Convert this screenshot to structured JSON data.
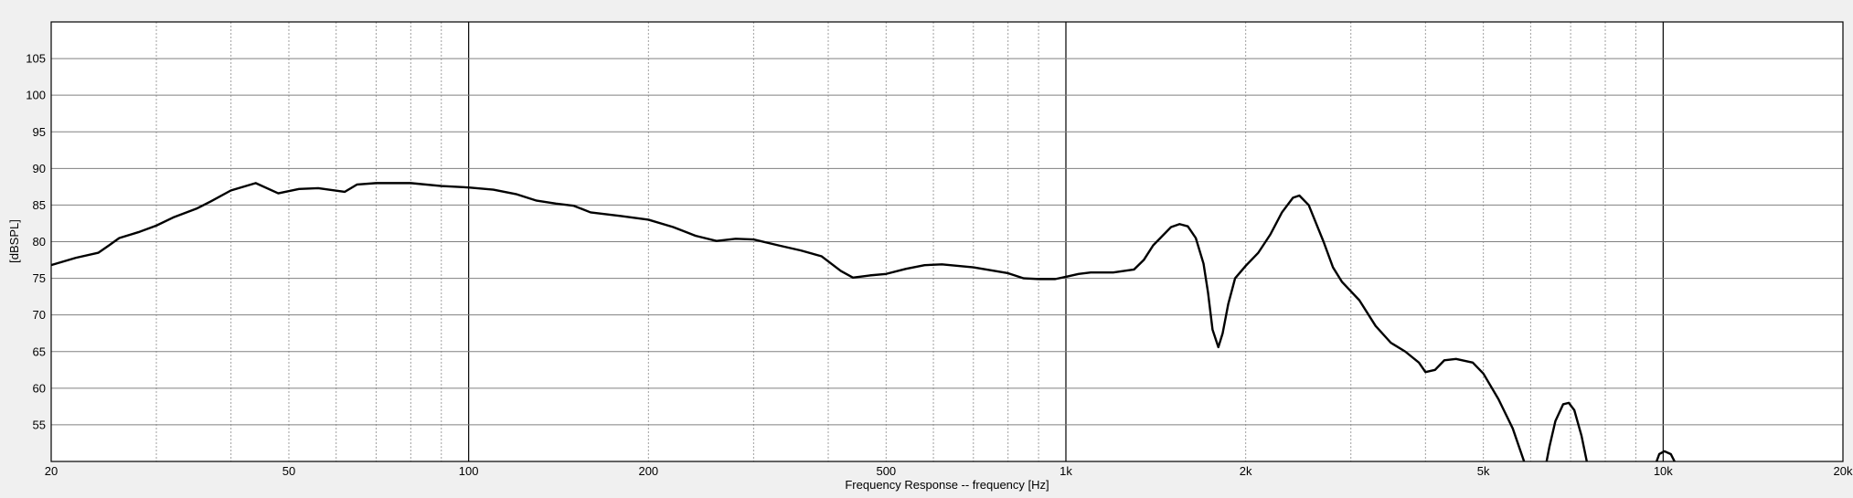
{
  "chart_data": {
    "type": "line",
    "title": "",
    "xlabel": "Frequency Response -- frequency [Hz]",
    "ylabel": "[dBSPL]",
    "x_scale": "log",
    "xlim": [
      20,
      20000
    ],
    "ylim": [
      50,
      110
    ],
    "grid": true,
    "legend": "none",
    "x_ticks": [
      {
        "value": 20,
        "label": "20"
      },
      {
        "value": 50,
        "label": "50"
      },
      {
        "value": 100,
        "label": "100"
      },
      {
        "value": 200,
        "label": "200"
      },
      {
        "value": 500,
        "label": "500"
      },
      {
        "value": 1000,
        "label": "1k"
      },
      {
        "value": 2000,
        "label": "2k"
      },
      {
        "value": 5000,
        "label": "5k"
      },
      {
        "value": 10000,
        "label": "10k"
      },
      {
        "value": 20000,
        "label": "20k"
      }
    ],
    "y_ticks": [
      {
        "value": 55,
        "label": "55"
      },
      {
        "value": 60,
        "label": "60"
      },
      {
        "value": 65,
        "label": "65"
      },
      {
        "value": 70,
        "label": "70"
      },
      {
        "value": 75,
        "label": "75"
      },
      {
        "value": 80,
        "label": "80"
      },
      {
        "value": 85,
        "label": "85"
      },
      {
        "value": 90,
        "label": "90"
      },
      {
        "value": 95,
        "label": "95"
      },
      {
        "value": 100,
        "label": "100"
      },
      {
        "value": 105,
        "label": "105"
      }
    ],
    "colors": {
      "line": "#000000",
      "plot_bg": "#ffffff",
      "page_bg": "#f0f0f0",
      "grid_major": "#808080",
      "grid_minor": "#a0a0a0"
    },
    "series": [
      {
        "segments": [
          [
            [
              20,
              76.8
            ],
            [
              22,
              77.8
            ],
            [
              24,
              78.5
            ],
            [
              25,
              79.5
            ],
            [
              26,
              80.5
            ],
            [
              28,
              81.3
            ],
            [
              30,
              82.2
            ],
            [
              32,
              83.3
            ],
            [
              35,
              84.5
            ],
            [
              37,
              85.5
            ],
            [
              40,
              87.0
            ],
            [
              44,
              88.0
            ],
            [
              48,
              86.6
            ],
            [
              52,
              87.2
            ],
            [
              56,
              87.3
            ],
            [
              62,
              86.8
            ],
            [
              65,
              87.8
            ],
            [
              70,
              88.0
            ],
            [
              80,
              88.0
            ],
            [
              90,
              87.6
            ],
            [
              100,
              87.4
            ],
            [
              110,
              87.1
            ],
            [
              120,
              86.5
            ],
            [
              130,
              85.6
            ],
            [
              140,
              85.2
            ],
            [
              150,
              84.9
            ],
            [
              160,
              84.0
            ],
            [
              180,
              83.5
            ],
            [
              200,
              83.0
            ],
            [
              220,
              82.0
            ],
            [
              240,
              80.8
            ],
            [
              260,
              80.1
            ],
            [
              280,
              80.4
            ],
            [
              300,
              80.3
            ],
            [
              330,
              79.5
            ],
            [
              360,
              78.8
            ],
            [
              390,
              78.0
            ],
            [
              420,
              76.0
            ],
            [
              440,
              75.1
            ],
            [
              470,
              75.4
            ],
            [
              500,
              75.6
            ],
            [
              540,
              76.3
            ],
            [
              580,
              76.8
            ],
            [
              620,
              76.9
            ],
            [
              700,
              76.5
            ],
            [
              800,
              75.7
            ],
            [
              850,
              75.0
            ],
            [
              900,
              74.9
            ],
            [
              960,
              74.9
            ],
            [
              1000,
              75.2
            ],
            [
              1050,
              75.6
            ],
            [
              1100,
              75.8
            ],
            [
              1200,
              75.8
            ],
            [
              1300,
              76.2
            ],
            [
              1350,
              77.5
            ],
            [
              1400,
              79.5
            ],
            [
              1500,
              82.0
            ],
            [
              1550,
              82.4
            ],
            [
              1600,
              82.1
            ],
            [
              1650,
              80.5
            ],
            [
              1700,
              77.0
            ],
            [
              1730,
              73.0
            ],
            [
              1760,
              68.0
            ],
            [
              1800,
              65.6
            ],
            [
              1830,
              67.5
            ],
            [
              1870,
              71.5
            ],
            [
              1920,
              75.0
            ],
            [
              2000,
              76.7
            ],
            [
              2100,
              78.5
            ],
            [
              2200,
              81.0
            ],
            [
              2300,
              84.0
            ],
            [
              2400,
              86.0
            ],
            [
              2460,
              86.3
            ],
            [
              2550,
              85.0
            ],
            [
              2700,
              80.0
            ],
            [
              2800,
              76.5
            ],
            [
              2900,
              74.5
            ],
            [
              3100,
              72.0
            ],
            [
              3300,
              68.5
            ],
            [
              3500,
              66.2
            ],
            [
              3700,
              65.0
            ],
            [
              3900,
              63.5
            ],
            [
              4000,
              62.2
            ],
            [
              4150,
              62.5
            ],
            [
              4300,
              63.8
            ],
            [
              4500,
              64.0
            ],
            [
              4800,
              63.5
            ],
            [
              5000,
              62.0
            ],
            [
              5300,
              58.5
            ],
            [
              5600,
              54.5
            ],
            [
              5850,
              50.0
            ]
          ],
          [
            [
              6380,
              50.0
            ],
            [
              6450,
              52.0
            ],
            [
              6600,
              55.5
            ],
            [
              6800,
              57.8
            ],
            [
              6950,
              58.0
            ],
            [
              7100,
              57.0
            ],
            [
              7300,
              53.5
            ],
            [
              7450,
              50.0
            ]
          ],
          [
            [
              9750,
              50.0
            ],
            [
              9850,
              51.0
            ],
            [
              10050,
              51.4
            ],
            [
              10300,
              51.0
            ],
            [
              10450,
              50.0
            ]
          ]
        ]
      }
    ]
  }
}
